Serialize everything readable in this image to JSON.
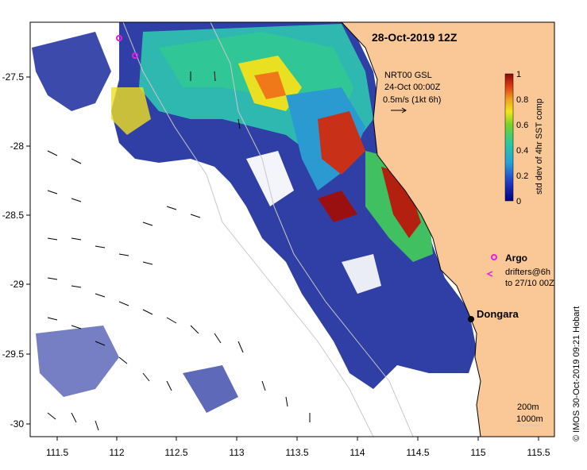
{
  "map": {
    "title": "28-Oct-2019 12Z",
    "x_ticks": [
      "111.5",
      "112",
      "112.5",
      "113",
      "113.5",
      "114",
      "114.5",
      "115",
      "115.5"
    ],
    "y_ticks": [
      "-27.5",
      "-28",
      "-28.5",
      "-29",
      "-29.5",
      "-30"
    ],
    "current_label_1": "NRT00 GSL",
    "current_label_2": "24-Oct 00:00Z",
    "current_label_3": "0.5m/s (1kt 6h)",
    "colorbar_label": "std dev of 4hr SST comp",
    "colorbar_ticks": [
      "1",
      "0.8",
      "0.6",
      "0.4",
      "0.2",
      "0"
    ],
    "argo_label": "Argo",
    "drifters_label_1": "drifters@6h",
    "drifters_label_2": "to 27/10 00Z",
    "town_label": "Dongara",
    "depth_label_1": "200m",
    "depth_label_2": "1000m",
    "credit": "© IMOS 30-Oct-2019 09:21 Hobart"
  },
  "colors": {
    "land": "#fac896",
    "ocean_bg": "#ffffff",
    "low": "#1a1a8c",
    "mid": "#19b4c8",
    "high": "#8c1a1a",
    "argo": "#e61ee6"
  }
}
